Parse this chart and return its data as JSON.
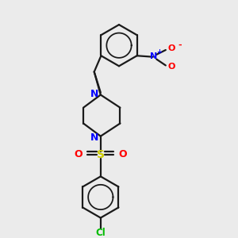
{
  "background_color": "#ebebeb",
  "bond_color": "#1a1a1a",
  "N_color": "#0000ff",
  "O_color": "#ff0000",
  "S_color": "#cccc00",
  "Cl_color": "#00bb00",
  "line_width": 1.6,
  "figsize": [
    3.0,
    3.0
  ],
  "dpi": 100,
  "xlim": [
    0,
    10
  ],
  "ylim": [
    0,
    10
  ]
}
